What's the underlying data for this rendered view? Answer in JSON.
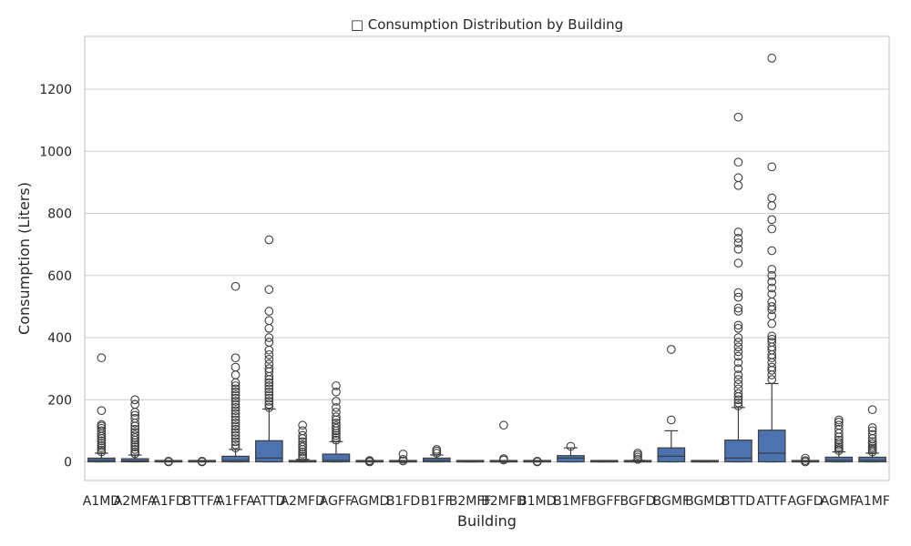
{
  "chart_data": {
    "type": "box",
    "title": "□ Consumption Distribution by Building",
    "xlabel": "Building",
    "ylabel": "Consumption (Liters)",
    "ylim": [
      -60,
      1370
    ],
    "yticks": [
      0,
      200,
      400,
      600,
      800,
      1000,
      1200
    ],
    "grid": true,
    "box_color": "#4c72b0",
    "edge_color": "#3d3d3d",
    "categories": [
      "A1MD",
      "A2MFA",
      "A1FD",
      "BTTFA",
      "A1FFA",
      "ATTD",
      "A2MFD",
      "AGFF",
      "AGMD",
      "B1FD",
      "B1FF",
      "B2MFF",
      "B2MFD",
      "B1MD",
      "B1MF",
      "BGFF",
      "BGFD",
      "BGMF",
      "BGMD",
      "BTTD",
      "ATTF",
      "AGFD",
      "AGMF",
      "A1MF"
    ],
    "boxes": [
      {
        "name": "A1MD",
        "whislo": 0,
        "q1": 0,
        "med": 5,
        "q3": 12,
        "whishi": 28,
        "fliers": [
          32,
          38,
          45,
          52,
          60,
          68,
          75,
          82,
          90,
          100,
          108,
          115,
          120,
          165,
          335
        ]
      },
      {
        "name": "A2MFA",
        "whislo": 0,
        "q1": 0,
        "med": 3,
        "q3": 10,
        "whishi": 22,
        "fliers": [
          26,
          32,
          40,
          48,
          55,
          62,
          70,
          78,
          86,
          95,
          105,
          115,
          125,
          140,
          150,
          160,
          185,
          200
        ]
      },
      {
        "name": "A1FD",
        "whislo": 0,
        "q1": 0,
        "med": 0,
        "q3": 0,
        "whishi": 0,
        "fliers": [
          0,
          2
        ]
      },
      {
        "name": "BTTFA",
        "whislo": 0,
        "q1": 0,
        "med": 0,
        "q3": 0,
        "whishi": 0,
        "fliers": [
          0,
          2
        ]
      },
      {
        "name": "A1FFA",
        "whislo": 0,
        "q1": 0,
        "med": 5,
        "q3": 18,
        "whishi": 40,
        "fliers": [
          45,
          55,
          65,
          75,
          85,
          95,
          105,
          115,
          125,
          135,
          145,
          155,
          165,
          175,
          185,
          195,
          205,
          215,
          225,
          235,
          245,
          255,
          280,
          305,
          335,
          565
        ]
      },
      {
        "name": "ATTD",
        "whislo": 0,
        "q1": 0,
        "med": 12,
        "q3": 68,
        "whishi": 170,
        "fliers": [
          175,
          185,
          195,
          205,
          215,
          225,
          235,
          245,
          255,
          265,
          275,
          290,
          300,
          315,
          330,
          345,
          360,
          385,
          400,
          430,
          455,
          485,
          555,
          715
        ]
      },
      {
        "name": "A2MFD",
        "whislo": 0,
        "q1": 0,
        "med": 0,
        "q3": 4,
        "whishi": 8,
        "fliers": [
          12,
          18,
          25,
          32,
          40,
          48,
          55,
          65,
          75,
          85,
          100,
          118
        ]
      },
      {
        "name": "AGFF",
        "whislo": 0,
        "q1": 0,
        "med": 5,
        "q3": 25,
        "whishi": 65,
        "fliers": [
          70,
          78,
          85,
          92,
          100,
          108,
          116,
          125,
          135,
          145,
          160,
          175,
          195,
          225,
          245
        ]
      },
      {
        "name": "AGMD",
        "whislo": 0,
        "q1": 0,
        "med": 0,
        "q3": 0,
        "whishi": 0,
        "fliers": [
          0,
          2,
          4
        ]
      },
      {
        "name": "B1FD",
        "whislo": 0,
        "q1": 0,
        "med": 0,
        "q3": 0,
        "whishi": 0,
        "fliers": [
          3,
          8,
          25
        ]
      },
      {
        "name": "B1FF",
        "whislo": 0,
        "q1": 0,
        "med": 5,
        "q3": 12,
        "whishi": 22,
        "fliers": [
          28,
          35,
          40
        ]
      },
      {
        "name": "B2MFF",
        "whislo": 0,
        "q1": 0,
        "med": 0,
        "q3": 0,
        "whishi": 0,
        "fliers": []
      },
      {
        "name": "B2MFD",
        "whislo": 0,
        "q1": 0,
        "med": 0,
        "q3": 2,
        "whishi": 4,
        "fliers": [
          6,
          10,
          118
        ]
      },
      {
        "name": "B1MD",
        "whislo": 0,
        "q1": 0,
        "med": 0,
        "q3": 0,
        "whishi": 0,
        "fliers": [
          0,
          2
        ]
      },
      {
        "name": "B1MF",
        "whislo": 0,
        "q1": 0,
        "med": 12,
        "q3": 20,
        "whishi": 45,
        "fliers": [
          50
        ]
      },
      {
        "name": "BGFF",
        "whislo": 0,
        "q1": 0,
        "med": 0,
        "q3": 0,
        "whishi": 0,
        "fliers": []
      },
      {
        "name": "BGFD",
        "whislo": 0,
        "q1": 0,
        "med": 0,
        "q3": 3,
        "whishi": 5,
        "fliers": [
          8,
          15,
          22,
          28
        ]
      },
      {
        "name": "BGMF",
        "whislo": 0,
        "q1": 0,
        "med": 18,
        "q3": 45,
        "whishi": 100,
        "fliers": [
          135,
          362
        ]
      },
      {
        "name": "BGMD",
        "whislo": 0,
        "q1": 0,
        "med": 0,
        "q3": 0,
        "whishi": 0,
        "fliers": []
      },
      {
        "name": "BTTD",
        "whislo": 0,
        "q1": 0,
        "med": 12,
        "q3": 70,
        "whishi": 175,
        "fliers": [
          180,
          190,
          200,
          210,
          220,
          235,
          250,
          265,
          280,
          300,
          320,
          340,
          355,
          370,
          385,
          400,
          430,
          440,
          485,
          495,
          530,
          545,
          640,
          685,
          705,
          720,
          740,
          890,
          915,
          965,
          1110
        ]
      },
      {
        "name": "ATTF",
        "whislo": 0,
        "q1": 0,
        "med": 28,
        "q3": 102,
        "whishi": 252,
        "fliers": [
          265,
          280,
          295,
          305,
          320,
          335,
          345,
          360,
          370,
          385,
          395,
          405,
          445,
          470,
          490,
          500,
          515,
          540,
          560,
          580,
          600,
          620,
          680,
          750,
          780,
          825,
          850,
          950,
          1300
        ]
      },
      {
        "name": "AGFD",
        "whislo": 0,
        "q1": 0,
        "med": 0,
        "q3": 0,
        "whishi": 0,
        "fliers": [
          0,
          4,
          12
        ]
      },
      {
        "name": "AGMF",
        "whislo": 0,
        "q1": 0,
        "med": 5,
        "q3": 15,
        "whishi": 32,
        "fliers": [
          36,
          42,
          48,
          55,
          62,
          70,
          80,
          92,
          105,
          118,
          128,
          135
        ]
      },
      {
        "name": "A1MF",
        "whislo": 0,
        "q1": 0,
        "med": 5,
        "q3": 15,
        "whishi": 28,
        "fliers": [
          32,
          38,
          44,
          50,
          58,
          65,
          75,
          88,
          100,
          110,
          168
        ]
      }
    ]
  }
}
